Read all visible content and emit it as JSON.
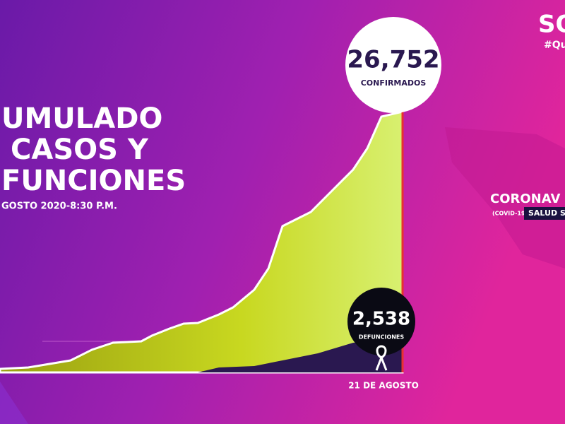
{
  "title": {
    "line1": "UMULADO",
    "line2": "CASOS Y",
    "line3": "FUNCIONES",
    "date": "GOSTO 2020-8:30 P.M."
  },
  "confirmed": {
    "value": "26,752",
    "label": "CONFIRMADOS"
  },
  "deaths": {
    "value": "2,538",
    "label": "DEFUNCIONES"
  },
  "date_label": "21 DE AGOSTO",
  "brand": {
    "logo": "SO",
    "hashtag": "#Qu"
  },
  "side": {
    "title": "CORONAV",
    "sub1": "(COVID-19)",
    "sub2": "SALUD S"
  }
}
